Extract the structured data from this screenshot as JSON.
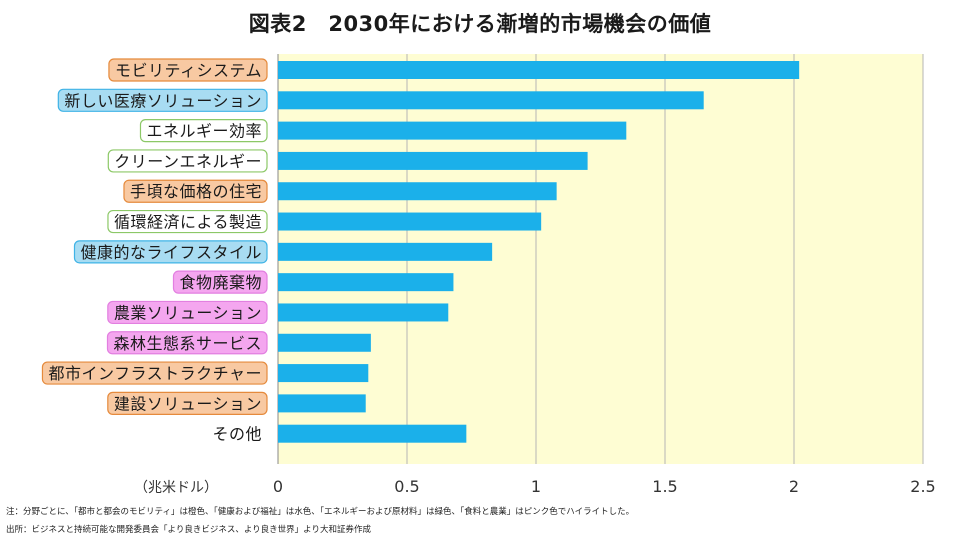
{
  "title": "図表2　2030年における漸増的市場機会の価値",
  "chart_data": {
    "type": "bar",
    "orientation": "horizontal",
    "title": "図表2　2030年における漸増的市場機会の価値",
    "xlabel": "（兆米ドル）",
    "xlim": [
      0,
      2.5
    ],
    "xticks": [
      "0",
      "0.5",
      "1",
      "1.5",
      "2",
      "2.5"
    ],
    "categories": [
      {
        "label": "モビリティシステム",
        "value": 2.02,
        "group": "orange"
      },
      {
        "label": "新しい医療ソリューション",
        "value": 1.65,
        "group": "blue"
      },
      {
        "label": "エネルギー効率",
        "value": 1.35,
        "group": "green"
      },
      {
        "label": "クリーンエネルギー",
        "value": 1.2,
        "group": "green"
      },
      {
        "label": "手頃な価格の住宅",
        "value": 1.08,
        "group": "orange"
      },
      {
        "label": "循環経済による製造",
        "value": 1.02,
        "group": "green"
      },
      {
        "label": "健康的なライフスタイル",
        "value": 0.83,
        "group": "blue"
      },
      {
        "label": "食物廃棄物",
        "value": 0.68,
        "group": "pink"
      },
      {
        "label": "農業ソリューション",
        "value": 0.66,
        "group": "pink"
      },
      {
        "label": "森林生態系サービス",
        "value": 0.36,
        "group": "pink"
      },
      {
        "label": "都市インフラストラクチャー",
        "value": 0.35,
        "group": "orange"
      },
      {
        "label": "建設ソリューション",
        "value": 0.34,
        "group": "orange"
      },
      {
        "label": "その他",
        "value": 0.73,
        "group": "none"
      }
    ],
    "colors": {
      "bar": "#1bb0ea",
      "plot_bg": "#fefdd3",
      "grid": "#b5b5b5",
      "orange_fill": "#f8c9a2",
      "orange_stroke": "#e58a3c",
      "blue_fill": "#a8dcf2",
      "blue_stroke": "#3fb3e6",
      "green_fill": "#ffffff",
      "green_stroke": "#8cc867",
      "pink_fill": "#f4a6ef",
      "pink_stroke": "#e27fe0"
    }
  },
  "notes": {
    "note": "注：分野ごとに、「都市と都会のモビリティ」は橙色、「健康および福祉」は水色、「エネルギーおよび原材料」は緑色、「食料と農業」はピンク色でハイライトした。",
    "source": "出所：ビジネスと持続可能な開発委員会「より良きビジネス、より良き世界」より大和証券作成"
  }
}
